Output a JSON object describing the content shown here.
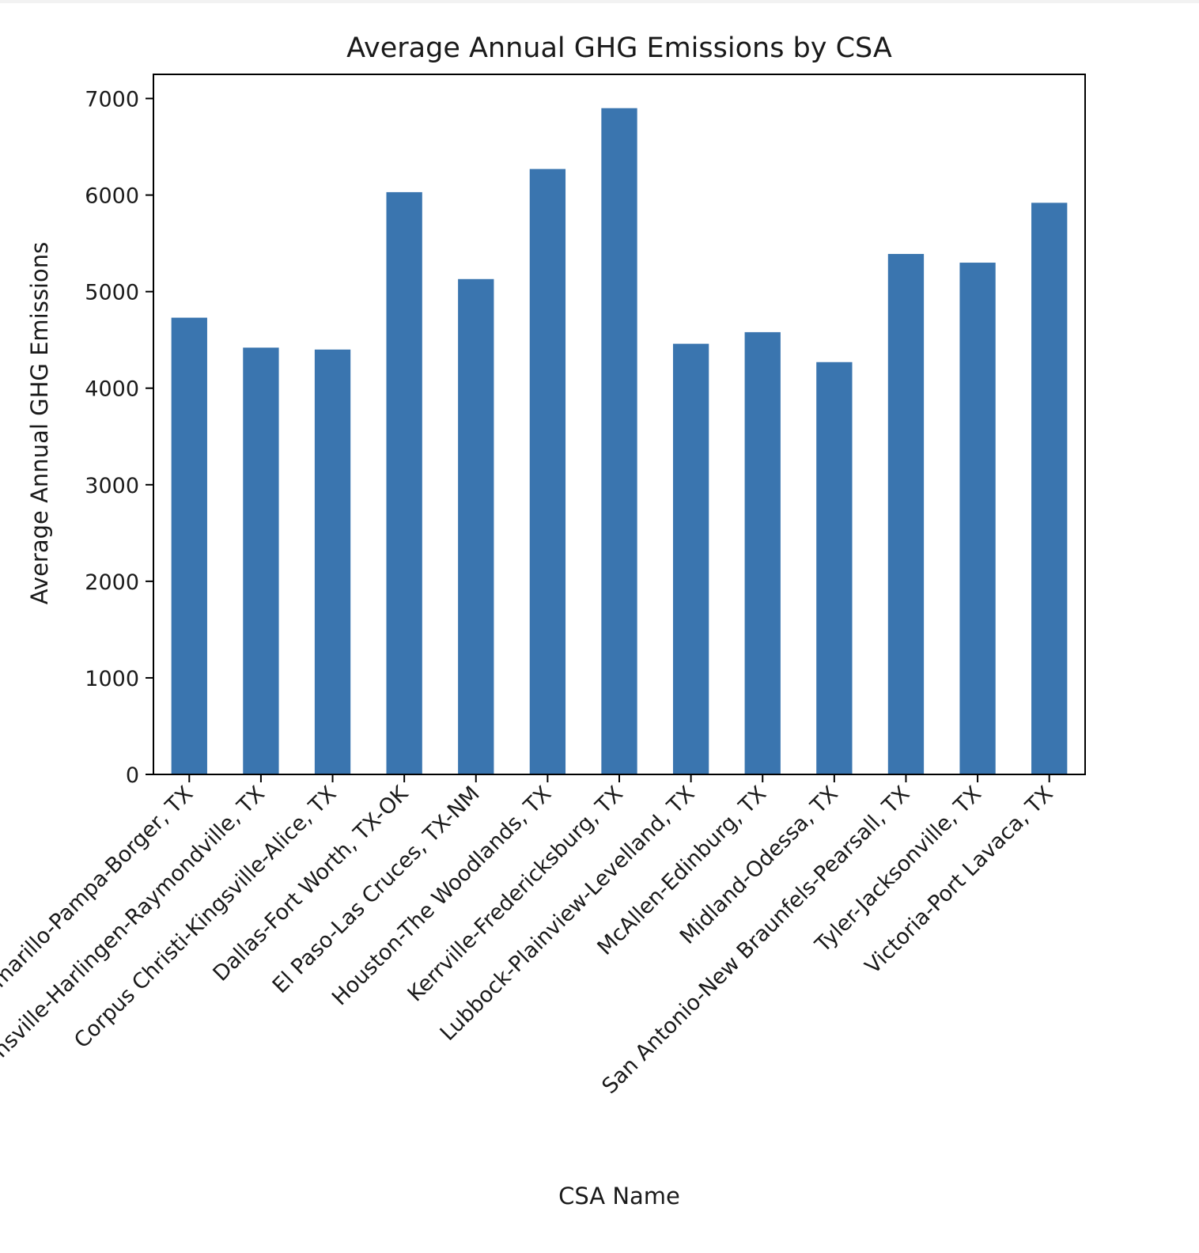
{
  "chart_data": {
    "type": "bar",
    "title": "Average Annual GHG Emissions by CSA",
    "xlabel": "CSA Name",
    "ylabel": "Average Annual GHG Emissions",
    "ylim": [
      0,
      7250
    ],
    "yticks": [
      "0",
      "1000",
      "2000",
      "3000",
      "4000",
      "5000",
      "6000",
      "7000"
    ],
    "grid": false,
    "bar_color": "#3a75af",
    "categories": [
      "Amarillo-Pampa-Borger, TX",
      "Brownsville-Harlingen-Raymondville, TX",
      "Corpus Christi-Kingsville-Alice, TX",
      "Dallas-Fort Worth, TX-OK",
      "El Paso-Las Cruces, TX-NM",
      "Houston-The Woodlands, TX",
      "Kerrville-Fredericksburg, TX",
      "Lubbock-Plainview-Levelland, TX",
      "McAllen-Edinburg, TX",
      "Midland-Odessa, TX",
      "San Antonio-New Braunfels-Pearsall, TX",
      "Tyler-Jacksonville, TX",
      "Victoria-Port Lavaca, TX"
    ],
    "values": [
      4730,
      4420,
      4400,
      6030,
      5130,
      6270,
      6900,
      4460,
      4580,
      4270,
      5390,
      5300,
      5920
    ]
  }
}
